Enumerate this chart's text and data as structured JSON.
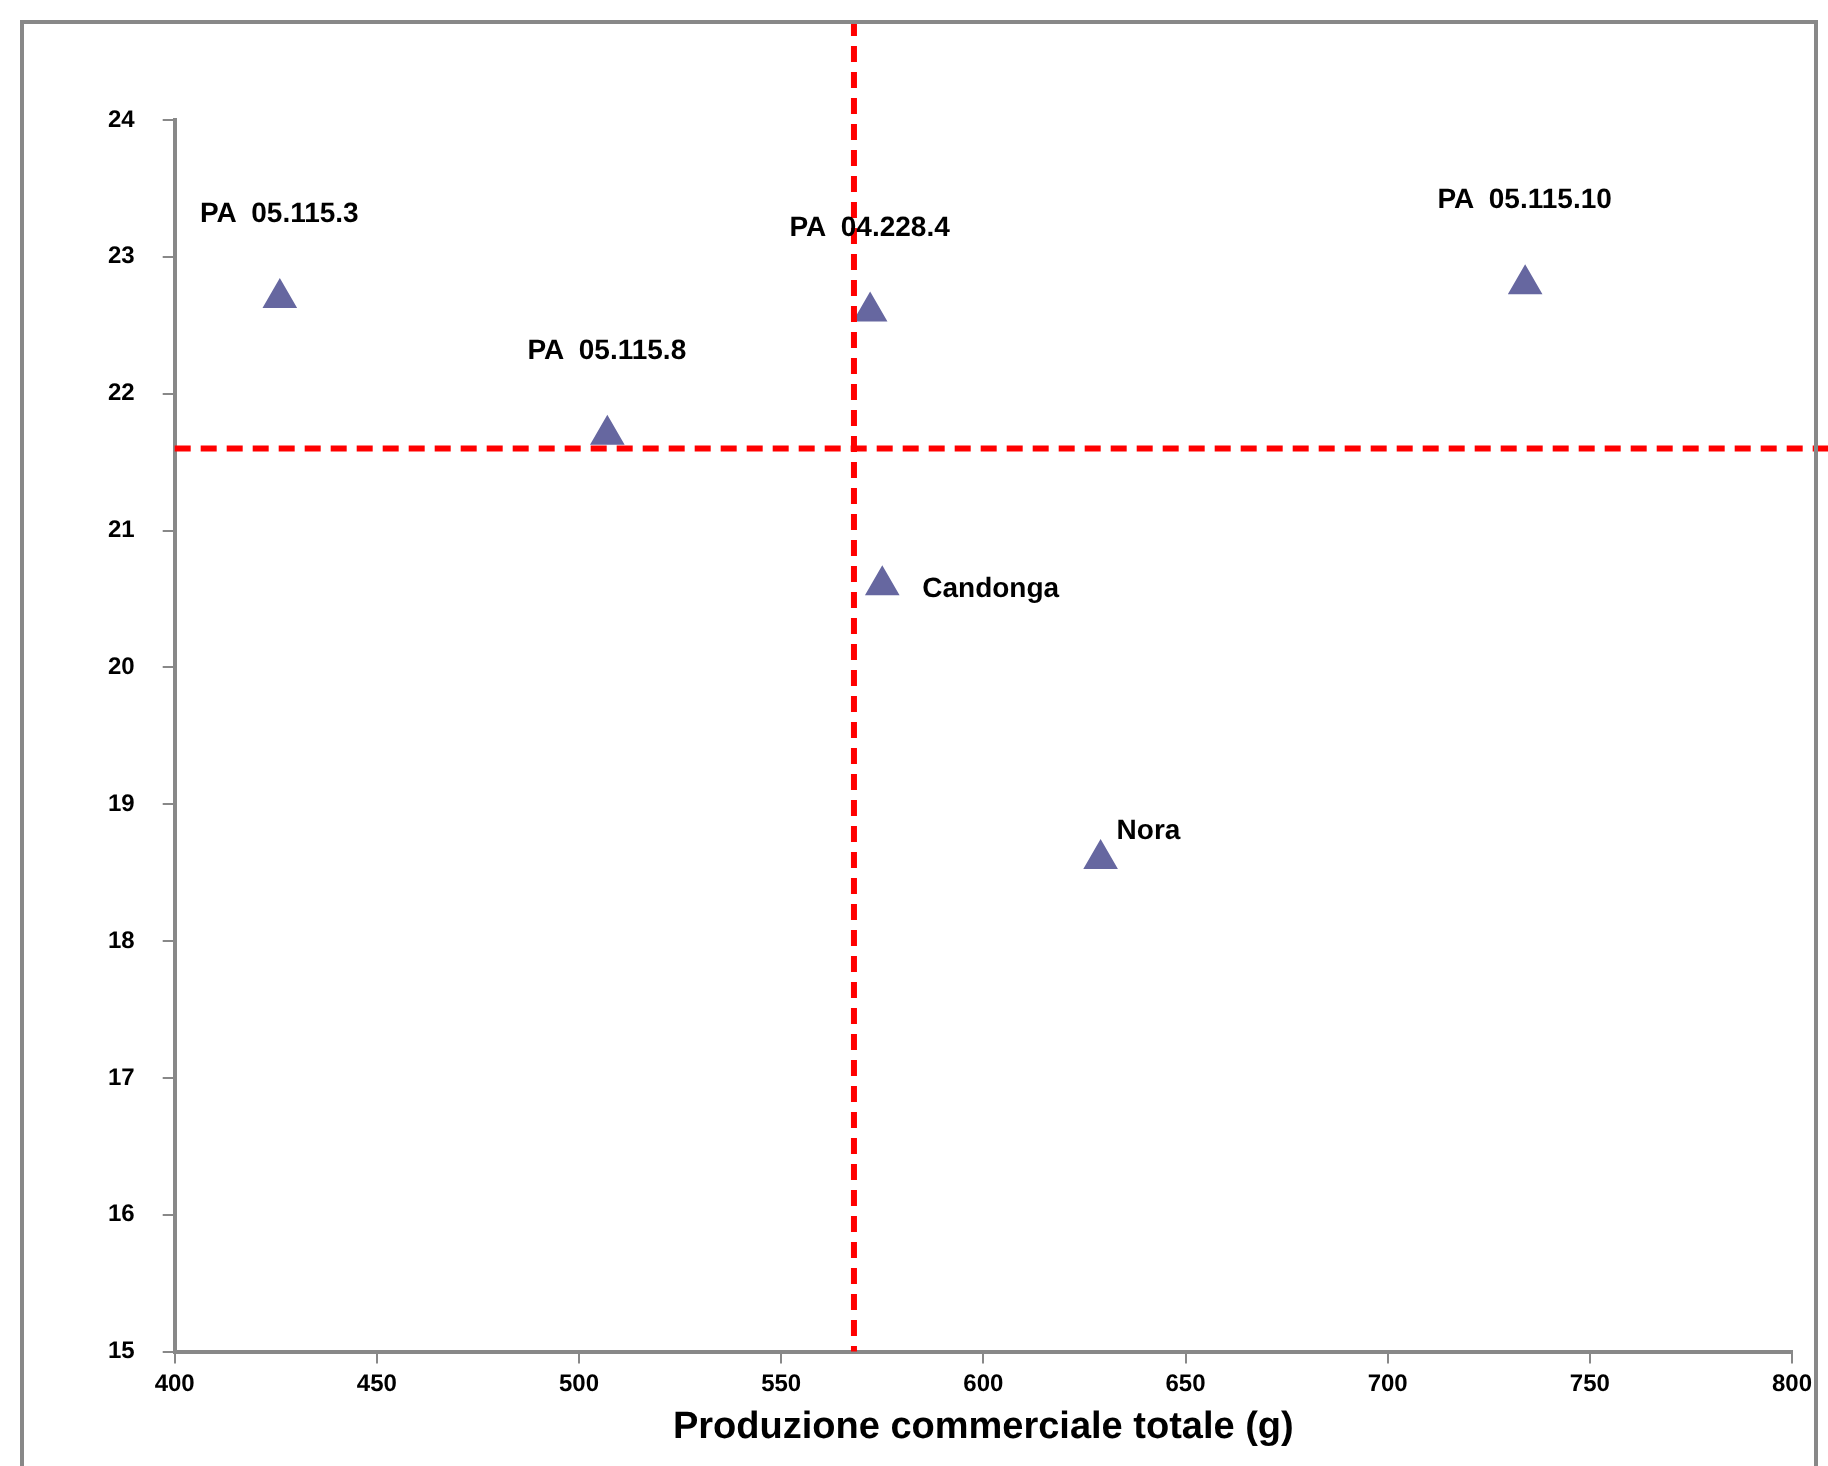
{
  "chart_data": {
    "type": "scatter",
    "xlabel": "Produzione commerciale totale (g)",
    "x": [
      426,
      507,
      572,
      734,
      575,
      629
    ],
    "values": [
      22.7,
      21.7,
      22.6,
      22.8,
      20.6,
      18.6
    ],
    "color": "#6667a0",
    "marker": "triangle",
    "grid": false,
    "legend": false,
    "xlim": [
      400,
      800
    ],
    "xticks": [
      400,
      450,
      500,
      550,
      600,
      650,
      700,
      750,
      800
    ],
    "ylim": [
      15,
      24
    ],
    "yticks": [
      15,
      16,
      17,
      18,
      19,
      20,
      21,
      22,
      23,
      24
    ],
    "ref_lines": [
      {
        "axis": "x",
        "value": 568,
        "color": "#ff0000",
        "line_style": "dashed"
      },
      {
        "axis": "y",
        "value": 21.6,
        "color": "#ff0000",
        "line_style": "dashed"
      }
    ],
    "annotations": [
      {
        "text": "PA  05.115.3",
        "x": 426,
        "y": 22.7
      },
      {
        "text": "PA  05.115.8",
        "x": 507,
        "y": 21.7
      },
      {
        "text": "PA  04.228.4",
        "x": 572,
        "y": 22.6
      },
      {
        "text": "PA  05.115.10",
        "x": 734,
        "y": 22.8
      },
      {
        "text": "Candonga",
        "x": 575,
        "y": 20.6
      },
      {
        "text": "Nora",
        "x": 629,
        "y": 18.6
      }
    ]
  }
}
